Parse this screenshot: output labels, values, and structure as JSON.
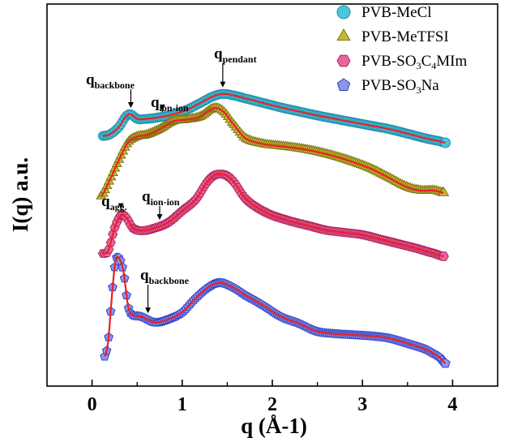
{
  "chart_data": {
    "type": "scatter",
    "xlabel": "q (Å-1)",
    "ylabel": "I(q) a.u.",
    "xlim": [
      -0.5,
      4.5
    ],
    "xticks": [
      "0",
      "1",
      "2",
      "3",
      "4"
    ],
    "yticks": "none",
    "grid": false,
    "legend_position": "top-right",
    "fit_color": "#e8202a",
    "series": [
      {
        "name": "PVB-MeCl",
        "marker": "circle",
        "color": "#4cc6dc",
        "stroke": "#1f8ea8",
        "x": [
          0.12,
          0.2,
          0.3,
          0.38,
          0.43,
          0.5,
          0.6,
          0.75,
          0.9,
          1.05,
          1.2,
          1.35,
          1.45,
          1.55,
          1.7,
          1.9,
          2.1,
          2.3,
          2.5,
          2.7,
          2.9,
          3.1,
          3.3,
          3.5,
          3.7,
          3.85,
          3.92
        ],
        "y": [
          0.12,
          0.15,
          0.28,
          0.47,
          0.5,
          0.42,
          0.42,
          0.45,
          0.5,
          0.58,
          0.7,
          0.82,
          0.86,
          0.84,
          0.78,
          0.7,
          0.62,
          0.55,
          0.48,
          0.42,
          0.36,
          0.3,
          0.24,
          0.16,
          0.08,
          0.03,
          0.0
        ]
      },
      {
        "name": "PVB-MeTFSI",
        "marker": "triangle",
        "color": "#c9b92e",
        "stroke": "#7d7214",
        "x": [
          0.1,
          0.2,
          0.3,
          0.4,
          0.5,
          0.6,
          0.75,
          0.9,
          1.05,
          1.2,
          1.35,
          1.45,
          1.55,
          1.7,
          1.9,
          2.1,
          2.3,
          2.5,
          2.7,
          2.9,
          3.1,
          3.3,
          3.5,
          3.65,
          3.8,
          3.9
        ],
        "y": [
          0.0,
          0.3,
          0.65,
          0.95,
          1.05,
          1.08,
          1.18,
          1.32,
          1.35,
          1.4,
          1.55,
          1.5,
          1.3,
          1.02,
          0.92,
          0.88,
          0.84,
          0.78,
          0.7,
          0.6,
          0.48,
          0.32,
          0.16,
          0.1,
          0.1,
          0.06
        ]
      },
      {
        "name": "PVB-SO3C4MIm",
        "marker": "hexagon",
        "color": "#e8679a",
        "stroke": "#b0215e",
        "x": [
          0.12,
          0.18,
          0.25,
          0.32,
          0.38,
          0.45,
          0.55,
          0.7,
          0.85,
          1.0,
          1.15,
          1.3,
          1.42,
          1.55,
          1.7,
          1.85,
          2.0,
          2.2,
          2.4,
          2.6,
          2.8,
          3.0,
          3.2,
          3.4,
          3.6,
          3.8,
          3.9
        ],
        "y": [
          0.05,
          0.1,
          0.5,
          0.72,
          0.68,
          0.5,
          0.45,
          0.5,
          0.6,
          0.8,
          1.0,
          1.35,
          1.45,
          1.35,
          1.02,
          0.84,
          0.72,
          0.62,
          0.54,
          0.46,
          0.42,
          0.38,
          0.3,
          0.22,
          0.14,
          0.05,
          0.0
        ]
      },
      {
        "name": "PVB-SO3Na",
        "marker": "pentagon",
        "color": "#8b98e8",
        "stroke": "#2f3ec4",
        "x": [
          0.14,
          0.18,
          0.22,
          0.26,
          0.3,
          0.35,
          0.4,
          0.45,
          0.55,
          0.7,
          0.85,
          1.0,
          1.15,
          1.3,
          1.42,
          1.55,
          1.7,
          1.9,
          2.1,
          2.3,
          2.5,
          2.7,
          2.9,
          3.1,
          3.3,
          3.5,
          3.7,
          3.85,
          3.92
        ],
        "y": [
          0.12,
          0.4,
          1.2,
          1.8,
          1.85,
          1.6,
          1.0,
          0.85,
          0.82,
          0.72,
          0.78,
          0.9,
          1.15,
          1.35,
          1.42,
          1.35,
          1.2,
          1.02,
          0.82,
          0.7,
          0.56,
          0.52,
          0.5,
          0.48,
          0.44,
          0.35,
          0.25,
          0.12,
          0.0
        ]
      }
    ],
    "annotations": [
      {
        "base": "q",
        "sub": "backbone",
        "arrow_x": 0.43,
        "series": 0
      },
      {
        "base": "q",
        "sub": "ion-ion",
        "arrow_x": 0.78,
        "series": 0
      },
      {
        "base": "q",
        "sub": "pendant",
        "arrow_x": 1.45,
        "series": 0
      },
      {
        "base": "q",
        "sub": "agg.",
        "arrow_x": 0.32,
        "series": 2
      },
      {
        "base": "q",
        "sub": "ion-ion",
        "arrow_x": 0.75,
        "series": 2
      },
      {
        "base": "q",
        "sub": "backbone",
        "arrow_x": 0.62,
        "series": 3
      }
    ]
  }
}
